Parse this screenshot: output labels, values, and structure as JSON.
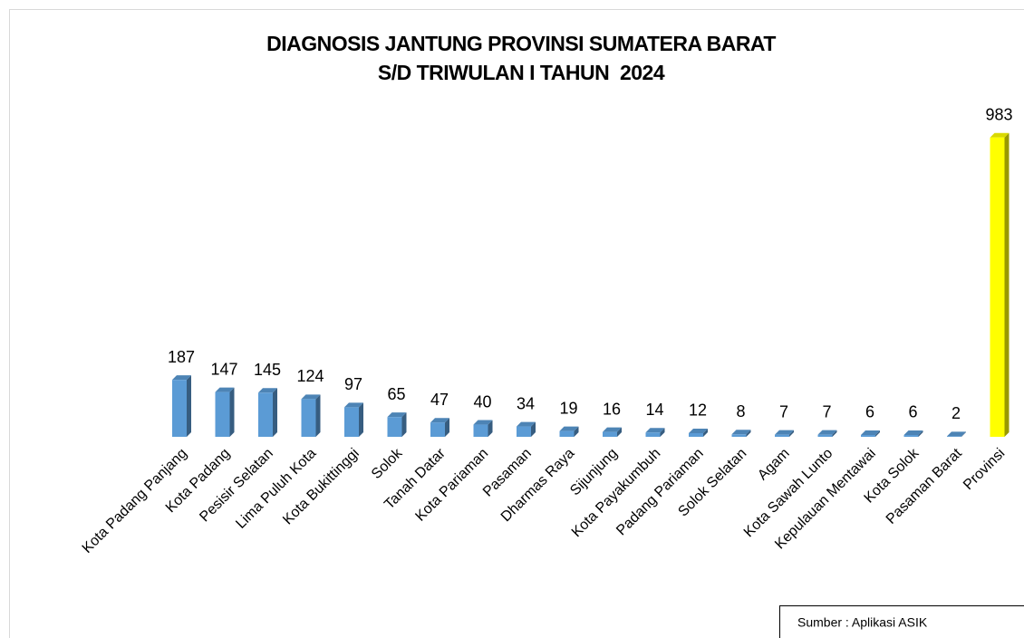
{
  "chart_data": {
    "type": "bar3d",
    "title": "DIAGNOSIS JANTUNG PROVINSI SUMATERA BARAT",
    "subtitle": "S/D TRIWULAN I TAHUN  2024",
    "categories": [
      "Kota Padang Panjang",
      "Kota Padang",
      "Pesisir Selatan",
      "Lima Puluh Kota",
      "Kota Bukittinggi",
      "Solok",
      "Tanah Datar",
      "Kota Pariaman",
      "Pasaman",
      "Dharmas Raya",
      "Sijunjung",
      "Kota Payakumbuh",
      "Padang Pariaman",
      "Solok Selatan",
      "Agam",
      "Kota Sawah Lunto",
      "Kepulauan Mentawai",
      "Kota Solok",
      "Pasaman Barat",
      "Provinsi"
    ],
    "values": [
      187,
      147,
      145,
      124,
      97,
      65,
      47,
      40,
      34,
      19,
      16,
      14,
      12,
      8,
      7,
      7,
      6,
      6,
      2,
      983
    ],
    "colors": [
      "#5b9bd5",
      "#5b9bd5",
      "#5b9bd5",
      "#5b9bd5",
      "#5b9bd5",
      "#5b9bd5",
      "#5b9bd5",
      "#5b9bd5",
      "#5b9bd5",
      "#5b9bd5",
      "#5b9bd5",
      "#5b9bd5",
      "#5b9bd5",
      "#5b9bd5",
      "#5b9bd5",
      "#5b9bd5",
      "#5b9bd5",
      "#5b9bd5",
      "#5b9bd5",
      "#ffff00"
    ],
    "source": "Sumber : Aplikasi ASIK"
  }
}
